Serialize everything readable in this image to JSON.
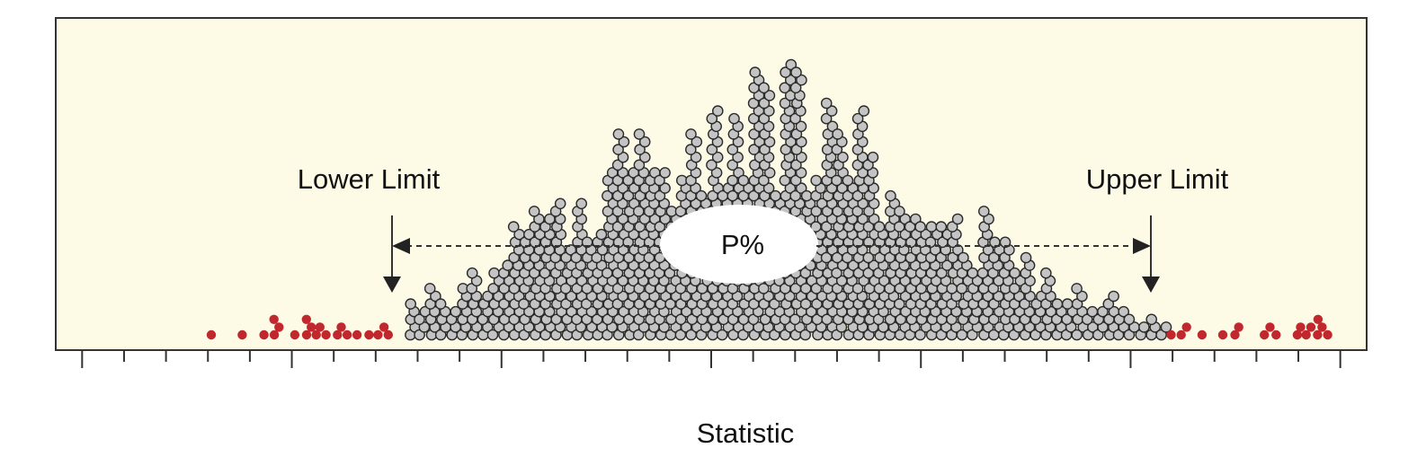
{
  "chart_data": {
    "type": "scatter",
    "title": "",
    "xlabel": "Statistic",
    "ylabel": "",
    "xlim": [
      0,
      62
    ],
    "ylim": [
      0,
      1
    ],
    "grid": false,
    "x_major_ticks": [
      1,
      11,
      21,
      31,
      41,
      51,
      61
    ],
    "x_minor_ticks": [
      3,
      5,
      7,
      9,
      13,
      15,
      17,
      19,
      23,
      25,
      27,
      29,
      33,
      35,
      37,
      39,
      43,
      45,
      47,
      49,
      53,
      55,
      57,
      59
    ],
    "lower_limit": 16.5,
    "upper_limit": 52.5,
    "annotations": {
      "lower": "Lower Limit",
      "upper": "Upper Limit",
      "interval": "P%"
    },
    "distribution": {
      "kind": "dot-plot",
      "mean": 33.2,
      "sd": 8.6,
      "inside_color": "#c4c4c4",
      "outside_color": "#c0282e"
    },
    "colors": {
      "plot_background": "#fdfae6",
      "inside_stroke": "#2a2a2a",
      "outside": "#c0282e"
    }
  }
}
